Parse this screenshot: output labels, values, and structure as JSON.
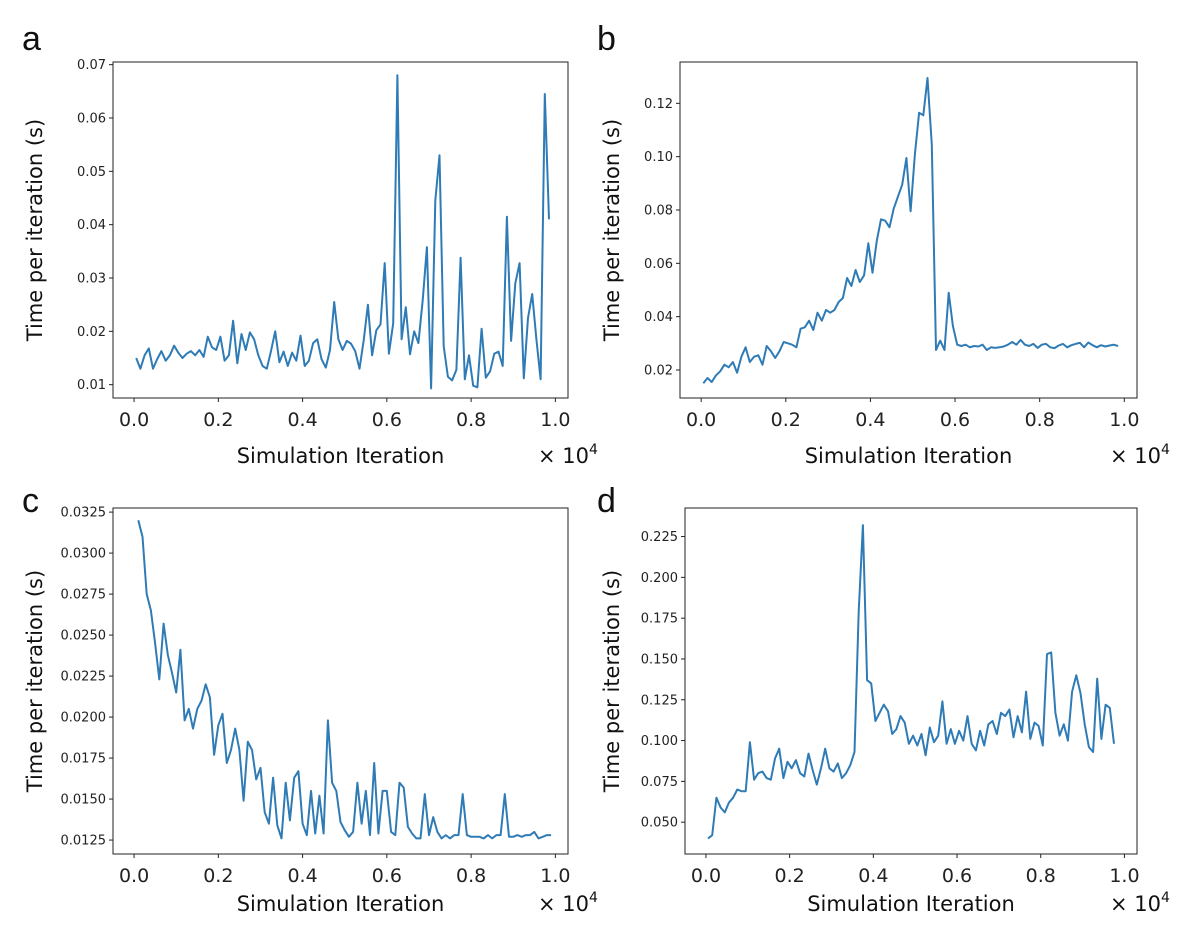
{
  "chart_data": [
    {
      "panel": "a",
      "type": "line",
      "xlabel": "Simulation Iteration",
      "ylabel": "Time per iteration (s)",
      "x_multiplier": "× 10",
      "x_multiplier_exp": "4",
      "xlim": [
        -0.05,
        1.03
      ],
      "ylim": [
        0.0075,
        0.0705
      ],
      "xticks": [
        0.0,
        0.2,
        0.4,
        0.6,
        0.8,
        1.0
      ],
      "xtick_labels": [
        "0.0",
        "0.2",
        "0.4",
        "0.6",
        "0.8",
        "1.0"
      ],
      "yticks": [
        0.01,
        0.02,
        0.03,
        0.04,
        0.05,
        0.06,
        0.07
      ],
      "ytick_labels": [
        "0.01",
        "0.02",
        "0.03",
        "0.04",
        "0.05",
        "0.06",
        "0.07"
      ],
      "x_start": 0.005,
      "x_step": 0.01,
      "values": [
        0.015,
        0.013,
        0.0155,
        0.0168,
        0.013,
        0.0148,
        0.0163,
        0.0145,
        0.0155,
        0.0173,
        0.016,
        0.015,
        0.0158,
        0.0163,
        0.0155,
        0.0165,
        0.0152,
        0.019,
        0.017,
        0.0165,
        0.019,
        0.0145,
        0.0155,
        0.022,
        0.014,
        0.0195,
        0.0165,
        0.0198,
        0.0185,
        0.0155,
        0.0135,
        0.013,
        0.0163,
        0.02,
        0.0142,
        0.0162,
        0.0135,
        0.016,
        0.0145,
        0.0192,
        0.0135,
        0.0145,
        0.0178,
        0.0185,
        0.0148,
        0.0132,
        0.0165,
        0.0255,
        0.0185,
        0.0165,
        0.0182,
        0.0177,
        0.0163,
        0.013,
        0.0183,
        0.025,
        0.0155,
        0.0202,
        0.0213,
        0.0328,
        0.0158,
        0.0215,
        0.068,
        0.0185,
        0.0245,
        0.0157,
        0.02,
        0.0178,
        0.0258,
        0.0358,
        0.0093,
        0.0445,
        0.053,
        0.0172,
        0.0115,
        0.0108,
        0.0128,
        0.0338,
        0.011,
        0.0155,
        0.0098,
        0.0095,
        0.0205,
        0.0113,
        0.0125,
        0.0158,
        0.0162,
        0.0135,
        0.0415,
        0.0182,
        0.029,
        0.0328,
        0.0112,
        0.0225,
        0.027,
        0.0185,
        0.011,
        0.0645,
        0.041
      ]
    },
    {
      "panel": "b",
      "type": "line",
      "xlabel": "Simulation Iteration",
      "ylabel": "Time per iteration (s)",
      "x_multiplier": "× 10",
      "x_multiplier_exp": "4",
      "xlim": [
        -0.05,
        1.03
      ],
      "ylim": [
        0.0095,
        0.1355
      ],
      "xticks": [
        0.0,
        0.2,
        0.4,
        0.6,
        0.8,
        1.0
      ],
      "xtick_labels": [
        "0.0",
        "0.2",
        "0.4",
        "0.6",
        "0.8",
        "1.0"
      ],
      "yticks": [
        0.02,
        0.04,
        0.06,
        0.08,
        0.1,
        0.12
      ],
      "ytick_labels": [
        "0.02",
        "0.04",
        "0.06",
        "0.08",
        "0.10",
        "0.12"
      ],
      "x_start": 0.005,
      "x_step": 0.01,
      "values": [
        0.015,
        0.017,
        0.0155,
        0.018,
        0.0195,
        0.022,
        0.021,
        0.023,
        0.019,
        0.025,
        0.0285,
        0.023,
        0.025,
        0.0255,
        0.022,
        0.029,
        0.027,
        0.0245,
        0.027,
        0.0305,
        0.03,
        0.0295,
        0.0285,
        0.0355,
        0.036,
        0.0385,
        0.035,
        0.0415,
        0.0385,
        0.0425,
        0.0415,
        0.0425,
        0.0455,
        0.047,
        0.0545,
        0.0515,
        0.0575,
        0.053,
        0.0555,
        0.0675,
        0.0565,
        0.0685,
        0.0765,
        0.076,
        0.0735,
        0.0805,
        0.085,
        0.0895,
        0.0995,
        0.0795,
        0.1005,
        0.1165,
        0.1155,
        0.1295,
        0.1045,
        0.0275,
        0.031,
        0.0275,
        0.049,
        0.0365,
        0.0295,
        0.029,
        0.0295,
        0.0285,
        0.029,
        0.0288,
        0.0295,
        0.0275,
        0.0285,
        0.0283,
        0.0285,
        0.0288,
        0.0295,
        0.0305,
        0.0295,
        0.0313,
        0.0295,
        0.029,
        0.0298,
        0.0283,
        0.0295,
        0.0298,
        0.0285,
        0.0282,
        0.0292,
        0.0298,
        0.0285,
        0.0293,
        0.0298,
        0.0302,
        0.0285,
        0.0303,
        0.0293,
        0.0285,
        0.0293,
        0.0288,
        0.0292,
        0.0295,
        0.029
      ]
    },
    {
      "panel": "c",
      "type": "line",
      "xlabel": "Simulation Iteration",
      "ylabel": "Time per iteration (s)",
      "x_multiplier": "× 10",
      "x_multiplier_exp": "4",
      "xlim": [
        -0.05,
        1.03
      ],
      "ylim": [
        0.01165,
        0.03275
      ],
      "xticks": [
        0.0,
        0.2,
        0.4,
        0.6,
        0.8,
        1.0
      ],
      "xtick_labels": [
        "0.0",
        "0.2",
        "0.4",
        "0.6",
        "0.8",
        "1.0"
      ],
      "yticks": [
        0.0125,
        0.015,
        0.0175,
        0.02,
        0.0225,
        0.025,
        0.0275,
        0.03,
        0.0325
      ],
      "ytick_labels": [
        "0.0125",
        "0.0150",
        "0.0175",
        "0.0200",
        "0.0225",
        "0.0250",
        "0.0275",
        "0.0300",
        "0.0325"
      ],
      "x_start": 0.01,
      "x_step": 0.01,
      "values": [
        0.032,
        0.031,
        0.0275,
        0.0265,
        0.0245,
        0.0223,
        0.0257,
        0.0238,
        0.0227,
        0.0215,
        0.0241,
        0.0198,
        0.0205,
        0.0193,
        0.0205,
        0.021,
        0.022,
        0.0212,
        0.0177,
        0.0195,
        0.0202,
        0.0172,
        0.018,
        0.0193,
        0.018,
        0.0149,
        0.0185,
        0.018,
        0.0162,
        0.0169,
        0.0142,
        0.0135,
        0.0163,
        0.0134,
        0.0126,
        0.016,
        0.0137,
        0.0163,
        0.0167,
        0.0135,
        0.0128,
        0.0155,
        0.0129,
        0.0152,
        0.0129,
        0.0198,
        0.016,
        0.0155,
        0.0136,
        0.0131,
        0.0127,
        0.013,
        0.016,
        0.0135,
        0.0155,
        0.0128,
        0.0172,
        0.0129,
        0.0155,
        0.0155,
        0.013,
        0.0128,
        0.016,
        0.0157,
        0.0133,
        0.0129,
        0.0126,
        0.0126,
        0.0153,
        0.0128,
        0.0139,
        0.013,
        0.0126,
        0.0128,
        0.0126,
        0.0128,
        0.0128,
        0.0153,
        0.0128,
        0.0127,
        0.0127,
        0.0127,
        0.0126,
        0.0128,
        0.0126,
        0.0128,
        0.0128,
        0.0153,
        0.0127,
        0.0127,
        0.0128,
        0.0127,
        0.0128,
        0.0128,
        0.013,
        0.0126,
        0.0127,
        0.0128,
        0.0128
      ]
    },
    {
      "panel": "d",
      "type": "line",
      "xlabel": "Simulation Iteration",
      "ylabel": "Time per iteration (s)",
      "x_multiplier": "× 10",
      "x_multiplier_exp": "4",
      "xlim": [
        -0.05,
        1.03
      ],
      "ylim": [
        0.0305,
        0.2425
      ],
      "xticks": [
        0.0,
        0.2,
        0.4,
        0.6,
        0.8,
        1.0
      ],
      "xtick_labels": [
        "0.0",
        "0.2",
        "0.4",
        "0.6",
        "0.8",
        "1.0"
      ],
      "yticks": [
        0.05,
        0.075,
        0.1,
        0.125,
        0.15,
        0.175,
        0.2,
        0.225
      ],
      "ytick_labels": [
        "0.050",
        "0.075",
        "0.100",
        "0.125",
        "0.150",
        "0.175",
        "0.200",
        "0.225"
      ],
      "x_start": 0.005,
      "x_step": 0.01,
      "values": [
        0.04,
        0.042,
        0.065,
        0.059,
        0.056,
        0.062,
        0.065,
        0.07,
        0.069,
        0.069,
        0.099,
        0.076,
        0.08,
        0.081,
        0.077,
        0.076,
        0.089,
        0.095,
        0.077,
        0.087,
        0.083,
        0.088,
        0.08,
        0.078,
        0.092,
        0.082,
        0.073,
        0.083,
        0.095,
        0.083,
        0.081,
        0.086,
        0.077,
        0.08,
        0.085,
        0.093,
        0.179,
        0.232,
        0.137,
        0.135,
        0.112,
        0.117,
        0.122,
        0.118,
        0.104,
        0.107,
        0.115,
        0.111,
        0.098,
        0.103,
        0.097,
        0.104,
        0.091,
        0.108,
        0.099,
        0.103,
        0.124,
        0.098,
        0.107,
        0.098,
        0.106,
        0.1,
        0.115,
        0.098,
        0.094,
        0.106,
        0.097,
        0.11,
        0.112,
        0.104,
        0.117,
        0.115,
        0.119,
        0.102,
        0.115,
        0.105,
        0.13,
        0.101,
        0.111,
        0.109,
        0.097,
        0.153,
        0.154,
        0.117,
        0.103,
        0.11,
        0.1,
        0.13,
        0.14,
        0.129,
        0.11,
        0.096,
        0.093,
        0.138,
        0.101,
        0.122,
        0.12,
        0.098
      ]
    }
  ],
  "panels": [
    {
      "letter": "a"
    },
    {
      "letter": "b"
    },
    {
      "letter": "c"
    },
    {
      "letter": "d"
    }
  ]
}
